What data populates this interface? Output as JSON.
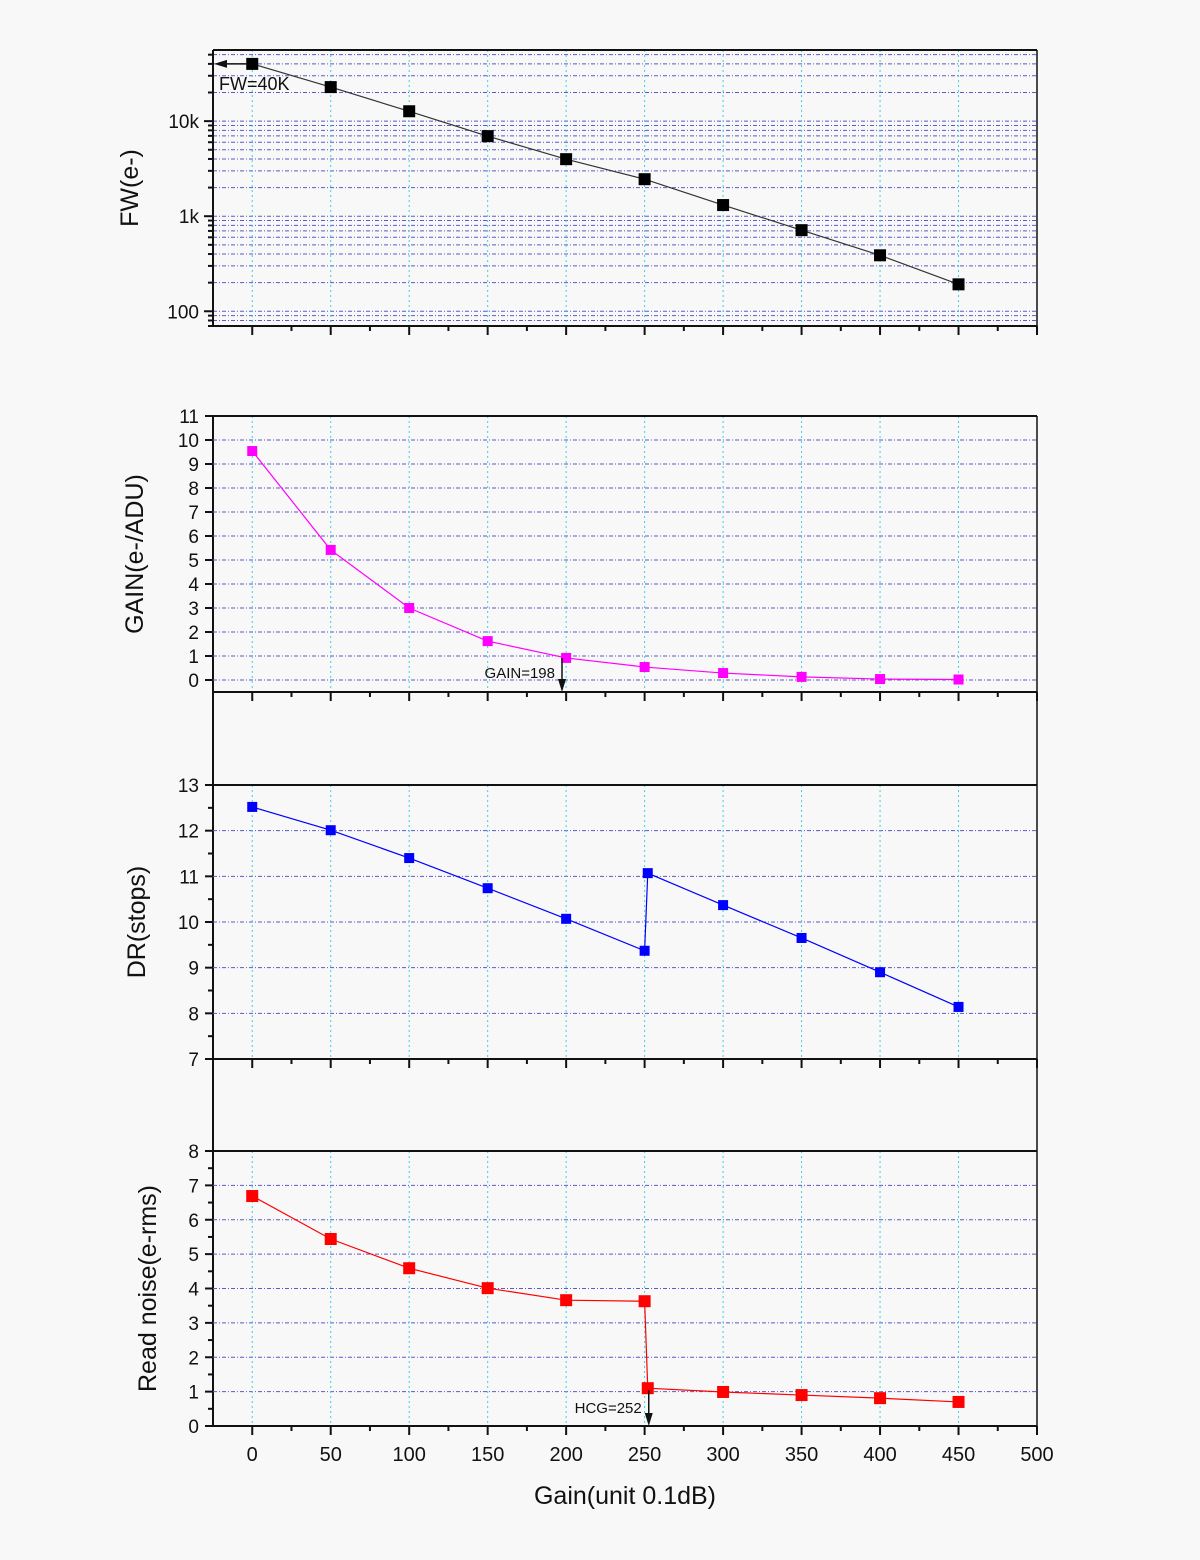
{
  "chart_data": {
    "type": "line",
    "xlabel": "Gain(unit 0.1dB)",
    "xlim": [
      -25,
      500
    ],
    "xticks": [
      0,
      50,
      100,
      150,
      200,
      250,
      300,
      350,
      400,
      450,
      500
    ],
    "grid": true,
    "panels": [
      {
        "name": "fw",
        "ylabel": "FW(e-)",
        "yscale": "log",
        "ylim": [
          70,
          56000
        ],
        "yticks": [
          100,
          1000,
          10000
        ],
        "yticklabels": [
          "100",
          "1k",
          "10k"
        ],
        "color": "#000000",
        "x": [
          0,
          50,
          100,
          150,
          200,
          250,
          300,
          350,
          400,
          450
        ],
        "y": [
          40000,
          22800,
          12700,
          6950,
          3980,
          2450,
          1310,
          713,
          388,
          192
        ],
        "annotation": {
          "text": "FW=40K",
          "x": 0,
          "y": 40000
        }
      },
      {
        "name": "gain",
        "ylabel": "GAIN(e-/ADU)",
        "yscale": "linear",
        "ylim": [
          -0.5,
          11
        ],
        "yticks": [
          0,
          1,
          2,
          3,
          4,
          5,
          6,
          7,
          8,
          9,
          10,
          11
        ],
        "yticklabels": [
          "0",
          "1",
          "2",
          "3",
          "4",
          "5",
          "6",
          "7",
          "8",
          "9",
          "10",
          "11"
        ],
        "color": "#ff00ff",
        "x": [
          0,
          50,
          100,
          150,
          200,
          250,
          300,
          350,
          400,
          450
        ],
        "y": [
          9.54,
          5.42,
          3.0,
          1.62,
          0.92,
          0.54,
          0.29,
          0.13,
          0.04,
          0.02
        ],
        "annotation": {
          "text": "GAIN=198",
          "x": 198,
          "y": 1.0
        }
      },
      {
        "name": "dr",
        "ylabel": "DR(stops)",
        "yscale": "linear",
        "ylim": [
          7,
          13
        ],
        "yticks": [
          7,
          8,
          9,
          10,
          11,
          12,
          13
        ],
        "yticklabels": [
          "7",
          "8",
          "9",
          "10",
          "11",
          "12",
          "13"
        ],
        "color": "#0000ff",
        "x": [
          0,
          50,
          100,
          150,
          200,
          250,
          252,
          300,
          350,
          400,
          450
        ],
        "y": [
          12.52,
          12.01,
          11.4,
          10.74,
          10.07,
          9.37,
          11.07,
          10.37,
          9.65,
          8.9,
          8.14
        ]
      },
      {
        "name": "read-noise",
        "ylabel": "Read noise(e-rms)",
        "yscale": "linear",
        "ylim": [
          0,
          8
        ],
        "yticks": [
          0,
          1,
          2,
          3,
          4,
          5,
          6,
          7,
          8
        ],
        "yticklabels": [
          "0",
          "1",
          "2",
          "3",
          "4",
          "5",
          "6",
          "7",
          "8"
        ],
        "color": "#ff0000",
        "x": [
          0,
          50,
          100,
          150,
          200,
          250,
          252,
          300,
          350,
          400,
          450
        ],
        "y": [
          6.69,
          5.44,
          4.59,
          4.01,
          3.66,
          3.63,
          1.1,
          0.99,
          0.9,
          0.81,
          0.7
        ],
        "annotation": {
          "text": "HCG=252",
          "x": 252,
          "y": 1.1
        }
      }
    ],
    "colors": {
      "hgrid": "#5a5ac8",
      "vgrid": "#40d0e0"
    }
  }
}
